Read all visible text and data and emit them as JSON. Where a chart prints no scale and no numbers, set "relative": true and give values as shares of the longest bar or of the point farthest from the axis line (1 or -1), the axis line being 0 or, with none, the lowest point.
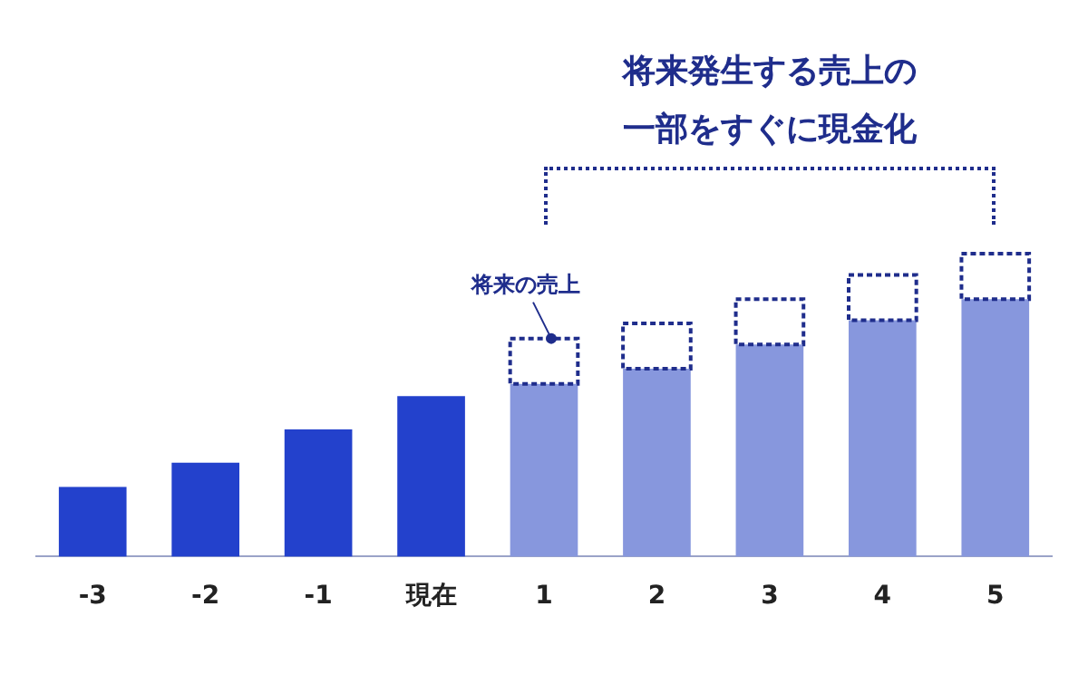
{
  "chart_data": {
    "type": "bar",
    "title": "将来発生する売上の一部をすぐに現金化",
    "relative": true,
    "stacked": true,
    "legend": false,
    "grid": false,
    "tick_labels": "x",
    "categories": [
      "-3",
      "-2",
      "-1",
      "現在",
      "1",
      "2",
      "3",
      "4",
      "5"
    ],
    "series": [
      {
        "color": "#2341cc",
        "values": [
          0.23,
          0.31,
          0.42,
          0.53,
          null,
          null,
          null,
          null,
          null
        ]
      },
      {
        "color": "#8797dd",
        "values": [
          null,
          null,
          null,
          null,
          0.57,
          0.62,
          0.7,
          0.78,
          0.85
        ]
      },
      {
        "color": "#1f2d8c",
        "line_style": "dashed",
        "values": [
          null,
          null,
          null,
          null,
          0.15,
          0.15,
          0.15,
          0.15,
          0.15
        ]
      }
    ],
    "annotations": [
      {
        "text": "将来の売上",
        "x": "1",
        "y": 0.72
      }
    ]
  }
}
